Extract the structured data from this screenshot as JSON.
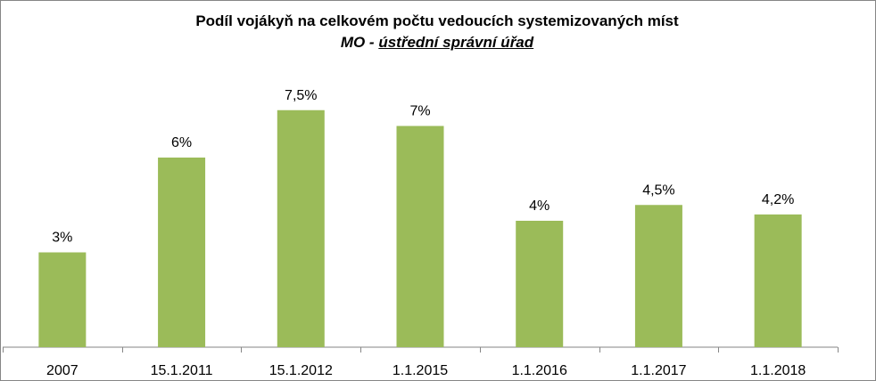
{
  "chart_data": {
    "type": "bar",
    "title": "Podíl vojákyň na celkovém počtu vedoucích systemizovaných míst",
    "subtitle_prefix": "MO - ",
    "subtitle_underlined": "ústřední  správní úřad",
    "categories": [
      "2007",
      "15.1.2011",
      "15.1.2012",
      "1.1.2015",
      "1.1.2016",
      "1.1.2017",
      "1.1.2018"
    ],
    "values": [
      3,
      6,
      7.5,
      7,
      4,
      4.5,
      4.2
    ],
    "data_labels": [
      "3%",
      "6%",
      "7,5%",
      "7%",
      "4%",
      "4,5%",
      "4,2%"
    ],
    "ylim": [
      0,
      10.5
    ],
    "bar_color": "#9BBB59",
    "grid": false,
    "legend": "none"
  }
}
